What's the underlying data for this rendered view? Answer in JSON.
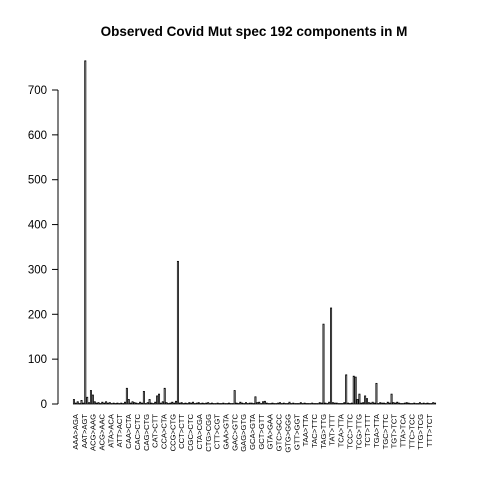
{
  "chart_data": {
    "type": "bar",
    "title": "Observed Covid Mut spec 192 components in M",
    "xlabel": "",
    "ylabel": "",
    "ylim": [
      0,
      770
    ],
    "yticks": [
      0,
      100,
      200,
      300,
      400,
      500,
      600,
      700
    ],
    "grid": false,
    "bar_count": 192,
    "x_tick_labels": [
      "AAA>AGA",
      "AAT>AGT",
      "ACG>AAG",
      "ACG>AAC",
      "ATA>ACA",
      "ATT>ACT",
      "CAA>CTA",
      "CAC>CTC",
      "CAG>CTG",
      "CAT>CTT",
      "CCA>CTA",
      "CCG>CTG",
      "CCT>CTT",
      "CGC>CTC",
      "CTA>CGA",
      "CTG>CGG",
      "CTT>CGT",
      "GAA>GTA",
      "GAC>GTC",
      "GAG>GTG",
      "GCA>GTA",
      "GCT>GTT",
      "GTA>GAA",
      "GTC>GCC",
      "GTG>GGG",
      "GTT>GGT",
      "TAA>TTA",
      "TAC>TTC",
      "TAG>TTG",
      "TAT>TTT",
      "TCA>TTA",
      "TCC>TTC",
      "TCG>TTG",
      "TCT>TTT",
      "TGA>TTA",
      "TGC>TTC",
      "TGT>TCT",
      "TTA>TCA",
      "TTC>TCC",
      "TTG>TCG",
      "TTT>TCT"
    ],
    "values": [
      10,
      2,
      5,
      1,
      8,
      2,
      765,
      15,
      3,
      30,
      20,
      5,
      2,
      3,
      1,
      4,
      2,
      5,
      2,
      3,
      1,
      2,
      1,
      2,
      1,
      2,
      1,
      4,
      35,
      10,
      2,
      5,
      3,
      2,
      1,
      4,
      2,
      28,
      1,
      3,
      10,
      2,
      1,
      4,
      18,
      22,
      2,
      5,
      35,
      3,
      1,
      2,
      4,
      2,
      6,
      318,
      2,
      3,
      1,
      2,
      1,
      3,
      2,
      4,
      1,
      2,
      3,
      1,
      2,
      1,
      2,
      3,
      1,
      2,
      1,
      1,
      2,
      1,
      1,
      2,
      1,
      1,
      2,
      1,
      1,
      30,
      2,
      1,
      4,
      2,
      1,
      3,
      1,
      2,
      2,
      1,
      16,
      3,
      4,
      1,
      5,
      6,
      2,
      1,
      1,
      2,
      1,
      1,
      2,
      3,
      1,
      2,
      1,
      1,
      4,
      1,
      2,
      1,
      1,
      1,
      3,
      1,
      2,
      1,
      1,
      1,
      2,
      1,
      1,
      1,
      3,
      2,
      178,
      2,
      1,
      4,
      214,
      3,
      2,
      2,
      1,
      1,
      1,
      3,
      65,
      2,
      1,
      2,
      62,
      60,
      10,
      22,
      2,
      3,
      18,
      12,
      3,
      2,
      4,
      2,
      46,
      1,
      3,
      2,
      2,
      1,
      4,
      2,
      22,
      3,
      2,
      4,
      2,
      1,
      1,
      2,
      3,
      2,
      1,
      1,
      2,
      1,
      1,
      3,
      1,
      2,
      1,
      2,
      1,
      1,
      3,
      2
    ]
  }
}
